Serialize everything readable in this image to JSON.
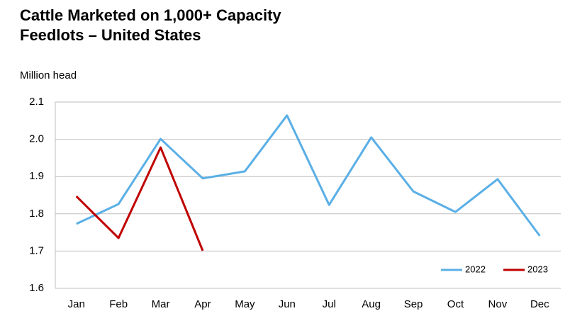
{
  "chart_data": {
    "type": "line",
    "title": "Cattle Marketed on 1,000+ Capacity Feedlots – United States",
    "y_label": "Million head",
    "categories": [
      "Jan",
      "Feb",
      "Mar",
      "Apr",
      "May",
      "Jun",
      "Jul",
      "Aug",
      "Sep",
      "Oct",
      "Nov",
      "Dec"
    ],
    "series": [
      {
        "name": "2022",
        "color": "#5aafe6",
        "values": [
          1.773,
          1.826,
          2.001,
          1.895,
          1.914,
          2.064,
          1.824,
          2.005,
          1.86,
          1.805,
          1.893,
          1.741
        ]
      },
      {
        "name": "2023",
        "color": "#c00000",
        "values": [
          1.847,
          1.735,
          1.978,
          1.701,
          null,
          null,
          null,
          null,
          null,
          null,
          null,
          null
        ]
      }
    ],
    "ylim": [
      1.6,
      2.1
    ],
    "yticks": [
      1.6,
      1.7,
      1.8,
      1.9,
      {
        "value": 2,
        "label": "2.0"
      },
      2.1
    ],
    "grid": true,
    "legend": "bottom-right"
  }
}
